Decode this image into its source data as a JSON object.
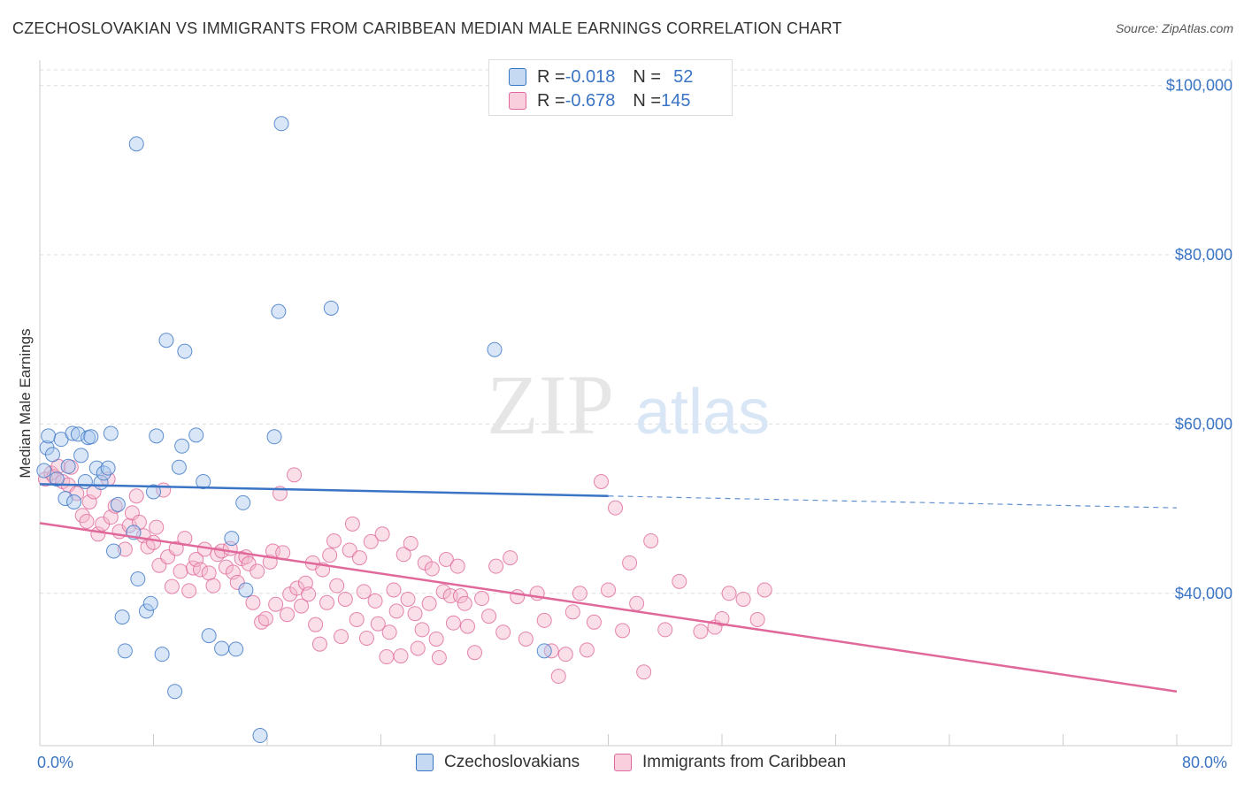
{
  "title": "CZECHOSLOVAKIAN VS IMMIGRANTS FROM CARIBBEAN MEDIAN MALE EARNINGS CORRELATION CHART",
  "source": "Source: ZipAtlas.com",
  "watermark": {
    "zip": "ZIP",
    "atlas": "atlas"
  },
  "legend": {
    "rows": [
      {
        "r_label": "R = ",
        "r_value": "-0.018",
        "n_label": "N = ",
        "n_value": "52"
      },
      {
        "r_label": "R = ",
        "r_value": "-0.678",
        "n_label": "N = ",
        "n_value": "145"
      }
    ]
  },
  "colors": {
    "blue": "#3a74c4",
    "blue_fill": "#a9c8ee",
    "pink": "#e0689a",
    "pink_fill": "#f5b8cd"
  },
  "chart_data": {
    "type": "scatter",
    "title": "CZECHOSLOVAKIAN VS IMMIGRANTS FROM CARIBBEAN MEDIAN MALE EARNINGS CORRELATION CHART",
    "xlabel": "",
    "ylabel": "Median Male Earnings",
    "xlim": [
      0,
      80
    ],
    "ylim": [
      22000,
      103000
    ],
    "x_tick_labels": [
      "0.0%",
      "80.0%"
    ],
    "y_ticks": [
      {
        "value": 40000,
        "label": "$40,000"
      },
      {
        "value": 60000,
        "label": "$60,000"
      },
      {
        "value": 80000,
        "label": "$80,000"
      },
      {
        "value": 100000,
        "label": "$100,000"
      }
    ],
    "series": [
      {
        "name": "Czechoslovakians",
        "color": "#3a74c4",
        "trend": {
          "x0": 0,
          "y0": 52900,
          "x1": 40,
          "y1": 51500,
          "dash_x1": 80,
          "dash_y1": 50100
        },
        "points": [
          [
            0.3,
            54500
          ],
          [
            0.5,
            57200
          ],
          [
            0.6,
            58600
          ],
          [
            0.9,
            56400
          ],
          [
            1.2,
            53500
          ],
          [
            1.5,
            58200
          ],
          [
            1.8,
            51200
          ],
          [
            2.0,
            55000
          ],
          [
            2.3,
            58900
          ],
          [
            2.4,
            50800
          ],
          [
            2.7,
            58800
          ],
          [
            2.9,
            56300
          ],
          [
            3.2,
            53200
          ],
          [
            3.4,
            58400
          ],
          [
            3.6,
            58500
          ],
          [
            4.0,
            54800
          ],
          [
            4.3,
            53100
          ],
          [
            4.5,
            54200
          ],
          [
            4.8,
            54800
          ],
          [
            5.0,
            58900
          ],
          [
            5.2,
            45000
          ],
          [
            5.5,
            50500
          ],
          [
            5.8,
            37200
          ],
          [
            6.0,
            33200
          ],
          [
            6.6,
            47200
          ],
          [
            6.8,
            93100
          ],
          [
            6.9,
            41700
          ],
          [
            7.5,
            37900
          ],
          [
            7.8,
            38800
          ],
          [
            8.0,
            52000
          ],
          [
            8.2,
            58600
          ],
          [
            8.6,
            32800
          ],
          [
            8.9,
            69900
          ],
          [
            9.5,
            28400
          ],
          [
            9.8,
            54900
          ],
          [
            10.0,
            57400
          ],
          [
            10.2,
            68600
          ],
          [
            11.0,
            58700
          ],
          [
            11.5,
            53200
          ],
          [
            11.9,
            35000
          ],
          [
            12.8,
            33500
          ],
          [
            13.5,
            46500
          ],
          [
            13.8,
            33400
          ],
          [
            14.3,
            50700
          ],
          [
            14.5,
            40400
          ],
          [
            15.5,
            23200
          ],
          [
            16.5,
            58500
          ],
          [
            16.8,
            73300
          ],
          [
            17.0,
            95500
          ],
          [
            20.5,
            73700
          ],
          [
            32.0,
            68800
          ],
          [
            35.5,
            33200
          ]
        ]
      },
      {
        "name": "Immigrants from Caribbean",
        "color": "#e0689a",
        "trend": {
          "x0": 0,
          "y0": 48300,
          "x1": 80,
          "y1": 28400
        },
        "points": [
          [
            0.4,
            53500
          ],
          [
            0.8,
            54200
          ],
          [
            1.0,
            53800
          ],
          [
            1.3,
            55000
          ],
          [
            1.6,
            53200
          ],
          [
            2.0,
            52800
          ],
          [
            2.2,
            54900
          ],
          [
            2.6,
            51800
          ],
          [
            3.0,
            49200
          ],
          [
            3.3,
            48500
          ],
          [
            3.5,
            50800
          ],
          [
            3.8,
            52000
          ],
          [
            4.1,
            47000
          ],
          [
            4.4,
            48200
          ],
          [
            4.8,
            53500
          ],
          [
            5.0,
            49000
          ],
          [
            5.3,
            50300
          ],
          [
            5.6,
            47300
          ],
          [
            6.0,
            45200
          ],
          [
            6.3,
            48000
          ],
          [
            6.5,
            49500
          ],
          [
            6.8,
            51500
          ],
          [
            7.0,
            48400
          ],
          [
            7.3,
            46800
          ],
          [
            7.6,
            45500
          ],
          [
            8.0,
            46000
          ],
          [
            8.2,
            47800
          ],
          [
            8.4,
            43300
          ],
          [
            8.7,
            52200
          ],
          [
            9.0,
            44300
          ],
          [
            9.3,
            40800
          ],
          [
            9.6,
            45300
          ],
          [
            9.9,
            42600
          ],
          [
            10.2,
            46500
          ],
          [
            10.5,
            40300
          ],
          [
            10.8,
            43000
          ],
          [
            11.0,
            44000
          ],
          [
            11.3,
            42800
          ],
          [
            11.6,
            45200
          ],
          [
            11.9,
            42400
          ],
          [
            12.2,
            40900
          ],
          [
            12.5,
            44600
          ],
          [
            12.8,
            45000
          ],
          [
            13.1,
            43100
          ],
          [
            13.4,
            45300
          ],
          [
            13.6,
            42500
          ],
          [
            13.9,
            41300
          ],
          [
            14.2,
            44100
          ],
          [
            14.5,
            44300
          ],
          [
            14.7,
            43500
          ],
          [
            15.0,
            38900
          ],
          [
            15.3,
            42600
          ],
          [
            15.6,
            36600
          ],
          [
            15.9,
            37000
          ],
          [
            16.2,
            43700
          ],
          [
            16.4,
            45000
          ],
          [
            16.6,
            38700
          ],
          [
            16.9,
            51800
          ],
          [
            17.1,
            44800
          ],
          [
            17.4,
            37500
          ],
          [
            17.6,
            39900
          ],
          [
            17.9,
            54000
          ],
          [
            18.1,
            40600
          ],
          [
            18.4,
            38500
          ],
          [
            18.7,
            41200
          ],
          [
            18.9,
            39900
          ],
          [
            19.2,
            43600
          ],
          [
            19.4,
            36300
          ],
          [
            19.7,
            34000
          ],
          [
            19.9,
            42800
          ],
          [
            20.2,
            38900
          ],
          [
            20.4,
            44500
          ],
          [
            20.7,
            46200
          ],
          [
            20.9,
            40900
          ],
          [
            21.2,
            34900
          ],
          [
            21.5,
            39300
          ],
          [
            21.8,
            45100
          ],
          [
            22.0,
            48200
          ],
          [
            22.3,
            36900
          ],
          [
            22.5,
            44200
          ],
          [
            22.8,
            40200
          ],
          [
            23.0,
            34700
          ],
          [
            23.3,
            46100
          ],
          [
            23.6,
            39100
          ],
          [
            23.8,
            36400
          ],
          [
            24.1,
            47000
          ],
          [
            24.4,
            32500
          ],
          [
            24.6,
            35400
          ],
          [
            24.9,
            40400
          ],
          [
            25.1,
            37900
          ],
          [
            25.4,
            32600
          ],
          [
            25.6,
            44600
          ],
          [
            25.9,
            39300
          ],
          [
            26.1,
            45900
          ],
          [
            26.4,
            37600
          ],
          [
            26.6,
            33500
          ],
          [
            26.9,
            35700
          ],
          [
            27.1,
            43600
          ],
          [
            27.4,
            38800
          ],
          [
            27.6,
            42900
          ],
          [
            27.9,
            34600
          ],
          [
            28.1,
            32400
          ],
          [
            28.4,
            40200
          ],
          [
            28.6,
            44000
          ],
          [
            28.9,
            39700
          ],
          [
            29.1,
            36500
          ],
          [
            29.4,
            43200
          ],
          [
            29.6,
            39700
          ],
          [
            29.9,
            38800
          ],
          [
            30.1,
            36100
          ],
          [
            30.6,
            33000
          ],
          [
            31.1,
            39400
          ],
          [
            31.6,
            37300
          ],
          [
            32.1,
            43200
          ],
          [
            32.6,
            35400
          ],
          [
            33.1,
            44200
          ],
          [
            33.6,
            39600
          ],
          [
            34.2,
            34600
          ],
          [
            35.0,
            40000
          ],
          [
            35.5,
            36800
          ],
          [
            36.0,
            33200
          ],
          [
            36.5,
            30200
          ],
          [
            37.0,
            32800
          ],
          [
            37.5,
            37800
          ],
          [
            38.0,
            40000
          ],
          [
            38.5,
            33300
          ],
          [
            39.0,
            36600
          ],
          [
            39.5,
            53200
          ],
          [
            40.0,
            40400
          ],
          [
            40.5,
            50100
          ],
          [
            41.0,
            35600
          ],
          [
            41.5,
            43600
          ],
          [
            42.0,
            38800
          ],
          [
            42.5,
            30700
          ],
          [
            43.0,
            46200
          ],
          [
            44.0,
            35700
          ],
          [
            45.0,
            41400
          ],
          [
            46.5,
            35500
          ],
          [
            47.5,
            36000
          ],
          [
            48.0,
            37000
          ],
          [
            48.5,
            40000
          ],
          [
            49.5,
            39300
          ],
          [
            50.5,
            36900
          ],
          [
            51.0,
            40400
          ]
        ]
      }
    ]
  },
  "bottom_legend": [
    "Czechoslovakians",
    "Immigrants from Caribbean"
  ]
}
